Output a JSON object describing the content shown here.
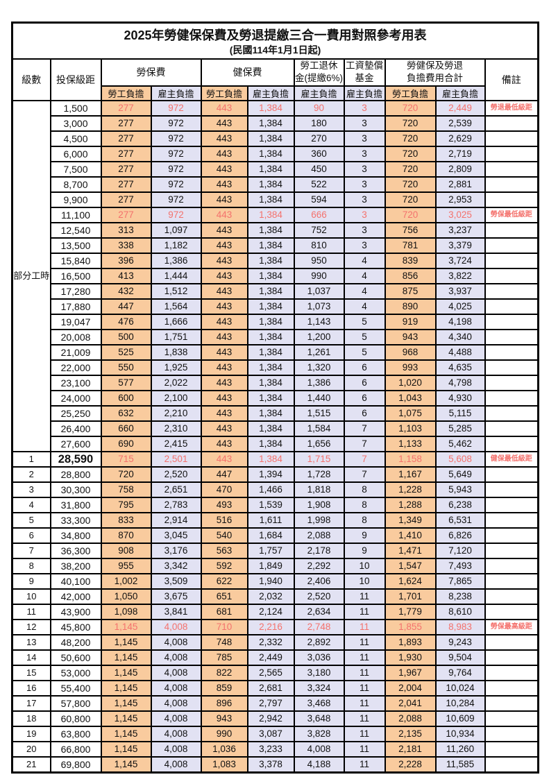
{
  "title": "2025年勞健保保費及勞退提繳三合一費用對照參考用表",
  "subtitle": "(民國114年1月1日起)",
  "columns": {
    "level": "級數",
    "salary_bracket": "投保級距",
    "labor_insurance": "勞保費",
    "health_insurance": "健保費",
    "pension_line1": "勞工退休",
    "pension_line2": "金(提繳6%)",
    "wage_fund_line1": "工資墊償",
    "wage_fund_line2": "基金",
    "total_line1": "勞健保及勞退",
    "total_line2": "負擔費用合計",
    "remarks": "備註"
  },
  "sub_headers": {
    "employee": "勞工負擔",
    "employer": "雇主負擔"
  },
  "part_time_label": "部分工時",
  "colors": {
    "employee_share_bg": "#f9cb9e",
    "employer_share_bg": "#e2e2f3",
    "highlight_red": "#f4726d"
  },
  "table": {
    "value_columns": [
      "勞保費勞工負擔",
      "勞保費雇主負擔",
      "健保費勞工負擔",
      "健保費雇主負擔",
      "勞工退休金雇主負擔",
      "工資墊償基金雇主負擔",
      "合計勞工負擔",
      "合計雇主負擔"
    ],
    "rows": [
      {
        "part_time_span": 23,
        "range": "1,500",
        "values": [
          "277",
          "972",
          "443",
          "1,384",
          "90",
          "3",
          "720",
          "2,449"
        ],
        "note": "勞退最低級距",
        "red": true
      },
      {
        "range": "3,000",
        "values": [
          "277",
          "972",
          "443",
          "1,384",
          "180",
          "3",
          "720",
          "2,539"
        ]
      },
      {
        "range": "4,500",
        "values": [
          "277",
          "972",
          "443",
          "1,384",
          "270",
          "3",
          "720",
          "2,629"
        ]
      },
      {
        "range": "6,000",
        "values": [
          "277",
          "972",
          "443",
          "1,384",
          "360",
          "3",
          "720",
          "2,719"
        ]
      },
      {
        "range": "7,500",
        "values": [
          "277",
          "972",
          "443",
          "1,384",
          "450",
          "3",
          "720",
          "2,809"
        ]
      },
      {
        "range": "8,700",
        "values": [
          "277",
          "972",
          "443",
          "1,384",
          "522",
          "3",
          "720",
          "2,881"
        ]
      },
      {
        "range": "9,900",
        "values": [
          "277",
          "972",
          "443",
          "1,384",
          "594",
          "3",
          "720",
          "2,953"
        ]
      },
      {
        "range": "11,100",
        "values": [
          "277",
          "972",
          "443",
          "1,384",
          "666",
          "3",
          "720",
          "3,025"
        ],
        "note": "勞保最低級距",
        "red": true
      },
      {
        "range": "12,540",
        "values": [
          "313",
          "1,097",
          "443",
          "1,384",
          "752",
          "3",
          "756",
          "3,237"
        ]
      },
      {
        "range": "13,500",
        "values": [
          "338",
          "1,182",
          "443",
          "1,384",
          "810",
          "3",
          "781",
          "3,379"
        ]
      },
      {
        "range": "15,840",
        "values": [
          "396",
          "1,386",
          "443",
          "1,384",
          "950",
          "4",
          "839",
          "3,724"
        ]
      },
      {
        "range": "16,500",
        "values": [
          "413",
          "1,444",
          "443",
          "1,384",
          "990",
          "4",
          "856",
          "3,822"
        ]
      },
      {
        "range": "17,280",
        "values": [
          "432",
          "1,512",
          "443",
          "1,384",
          "1,037",
          "4",
          "875",
          "3,937"
        ]
      },
      {
        "range": "17,880",
        "values": [
          "447",
          "1,564",
          "443",
          "1,384",
          "1,073",
          "4",
          "890",
          "4,025"
        ]
      },
      {
        "range": "19,047",
        "values": [
          "476",
          "1,666",
          "443",
          "1,384",
          "1,143",
          "5",
          "919",
          "4,198"
        ]
      },
      {
        "range": "20,008",
        "values": [
          "500",
          "1,751",
          "443",
          "1,384",
          "1,200",
          "5",
          "943",
          "4,340"
        ]
      },
      {
        "range": "21,009",
        "values": [
          "525",
          "1,838",
          "443",
          "1,384",
          "1,261",
          "5",
          "968",
          "4,488"
        ]
      },
      {
        "range": "22,000",
        "values": [
          "550",
          "1,925",
          "443",
          "1,384",
          "1,320",
          "6",
          "993",
          "4,635"
        ]
      },
      {
        "range": "23,100",
        "values": [
          "577",
          "2,022",
          "443",
          "1,384",
          "1,386",
          "6",
          "1,020",
          "4,798"
        ]
      },
      {
        "range": "24,000",
        "values": [
          "600",
          "2,100",
          "443",
          "1,384",
          "1,440",
          "6",
          "1,043",
          "4,930"
        ]
      },
      {
        "range": "25,250",
        "values": [
          "632",
          "2,210",
          "443",
          "1,384",
          "1,515",
          "6",
          "1,075",
          "5,115"
        ]
      },
      {
        "range": "26,400",
        "values": [
          "660",
          "2,310",
          "443",
          "1,384",
          "1,584",
          "7",
          "1,103",
          "5,285"
        ]
      },
      {
        "range": "27,600",
        "values": [
          "690",
          "2,415",
          "443",
          "1,384",
          "1,656",
          "7",
          "1,133",
          "5,462"
        ]
      },
      {
        "level": "1",
        "range": "28,590",
        "values": [
          "715",
          "2,501",
          "443",
          "1,384",
          "1,715",
          "7",
          "1,158",
          "5,608"
        ],
        "note": "健保最低級距",
        "red": true,
        "bold": true
      },
      {
        "level": "2",
        "range": "28,800",
        "values": [
          "720",
          "2,520",
          "447",
          "1,394",
          "1,728",
          "7",
          "1,167",
          "5,649"
        ]
      },
      {
        "level": "3",
        "range": "30,300",
        "values": [
          "758",
          "2,651",
          "470",
          "1,466",
          "1,818",
          "8",
          "1,228",
          "5,943"
        ]
      },
      {
        "level": "4",
        "range": "31,800",
        "values": [
          "795",
          "2,783",
          "493",
          "1,539",
          "1,908",
          "8",
          "1,288",
          "6,238"
        ]
      },
      {
        "level": "5",
        "range": "33,300",
        "values": [
          "833",
          "2,914",
          "516",
          "1,611",
          "1,998",
          "8",
          "1,349",
          "6,531"
        ]
      },
      {
        "level": "6",
        "range": "34,800",
        "values": [
          "870",
          "3,045",
          "540",
          "1,684",
          "2,088",
          "9",
          "1,410",
          "6,826"
        ]
      },
      {
        "level": "7",
        "range": "36,300",
        "values": [
          "908",
          "3,176",
          "563",
          "1,757",
          "2,178",
          "9",
          "1,471",
          "7,120"
        ]
      },
      {
        "level": "8",
        "range": "38,200",
        "values": [
          "955",
          "3,342",
          "592",
          "1,849",
          "2,292",
          "10",
          "1,547",
          "7,493"
        ]
      },
      {
        "level": "9",
        "range": "40,100",
        "values": [
          "1,002",
          "3,509",
          "622",
          "1,940",
          "2,406",
          "10",
          "1,624",
          "7,865"
        ]
      },
      {
        "level": "10",
        "range": "42,000",
        "values": [
          "1,050",
          "3,675",
          "651",
          "2,032",
          "2,520",
          "11",
          "1,701",
          "8,238"
        ]
      },
      {
        "level": "11",
        "range": "43,900",
        "values": [
          "1,098",
          "3,841",
          "681",
          "2,124",
          "2,634",
          "11",
          "1,779",
          "8,610"
        ]
      },
      {
        "level": "12",
        "range": "45,800",
        "values": [
          "1,145",
          "4,008",
          "710",
          "2,216",
          "2,748",
          "11",
          "1,855",
          "8,983"
        ],
        "note": "勞保最高級距",
        "red": true
      },
      {
        "level": "13",
        "range": "48,200",
        "values": [
          "1,145",
          "4,008",
          "748",
          "2,332",
          "2,892",
          "11",
          "1,893",
          "9,243"
        ]
      },
      {
        "level": "14",
        "range": "50,600",
        "values": [
          "1,145",
          "4,008",
          "785",
          "2,449",
          "3,036",
          "11",
          "1,930",
          "9,504"
        ]
      },
      {
        "level": "15",
        "range": "53,000",
        "values": [
          "1,145",
          "4,008",
          "822",
          "2,565",
          "3,180",
          "11",
          "1,967",
          "9,764"
        ]
      },
      {
        "level": "16",
        "range": "55,400",
        "values": [
          "1,145",
          "4,008",
          "859",
          "2,681",
          "3,324",
          "11",
          "2,004",
          "10,024"
        ]
      },
      {
        "level": "17",
        "range": "57,800",
        "values": [
          "1,145",
          "4,008",
          "896",
          "2,797",
          "3,468",
          "11",
          "2,041",
          "10,284"
        ]
      },
      {
        "level": "18",
        "range": "60,800",
        "values": [
          "1,145",
          "4,008",
          "943",
          "2,942",
          "3,648",
          "11",
          "2,088",
          "10,609"
        ]
      },
      {
        "level": "19",
        "range": "63,800",
        "values": [
          "1,145",
          "4,008",
          "990",
          "3,087",
          "3,828",
          "11",
          "2,135",
          "10,934"
        ]
      },
      {
        "level": "20",
        "range": "66,800",
        "values": [
          "1,145",
          "4,008",
          "1,036",
          "3,233",
          "4,008",
          "11",
          "2,181",
          "11,260"
        ]
      },
      {
        "level": "21",
        "range": "69,800",
        "values": [
          "1,145",
          "4,008",
          "1,083",
          "3,378",
          "4,188",
          "11",
          "2,228",
          "11,585"
        ]
      }
    ]
  }
}
